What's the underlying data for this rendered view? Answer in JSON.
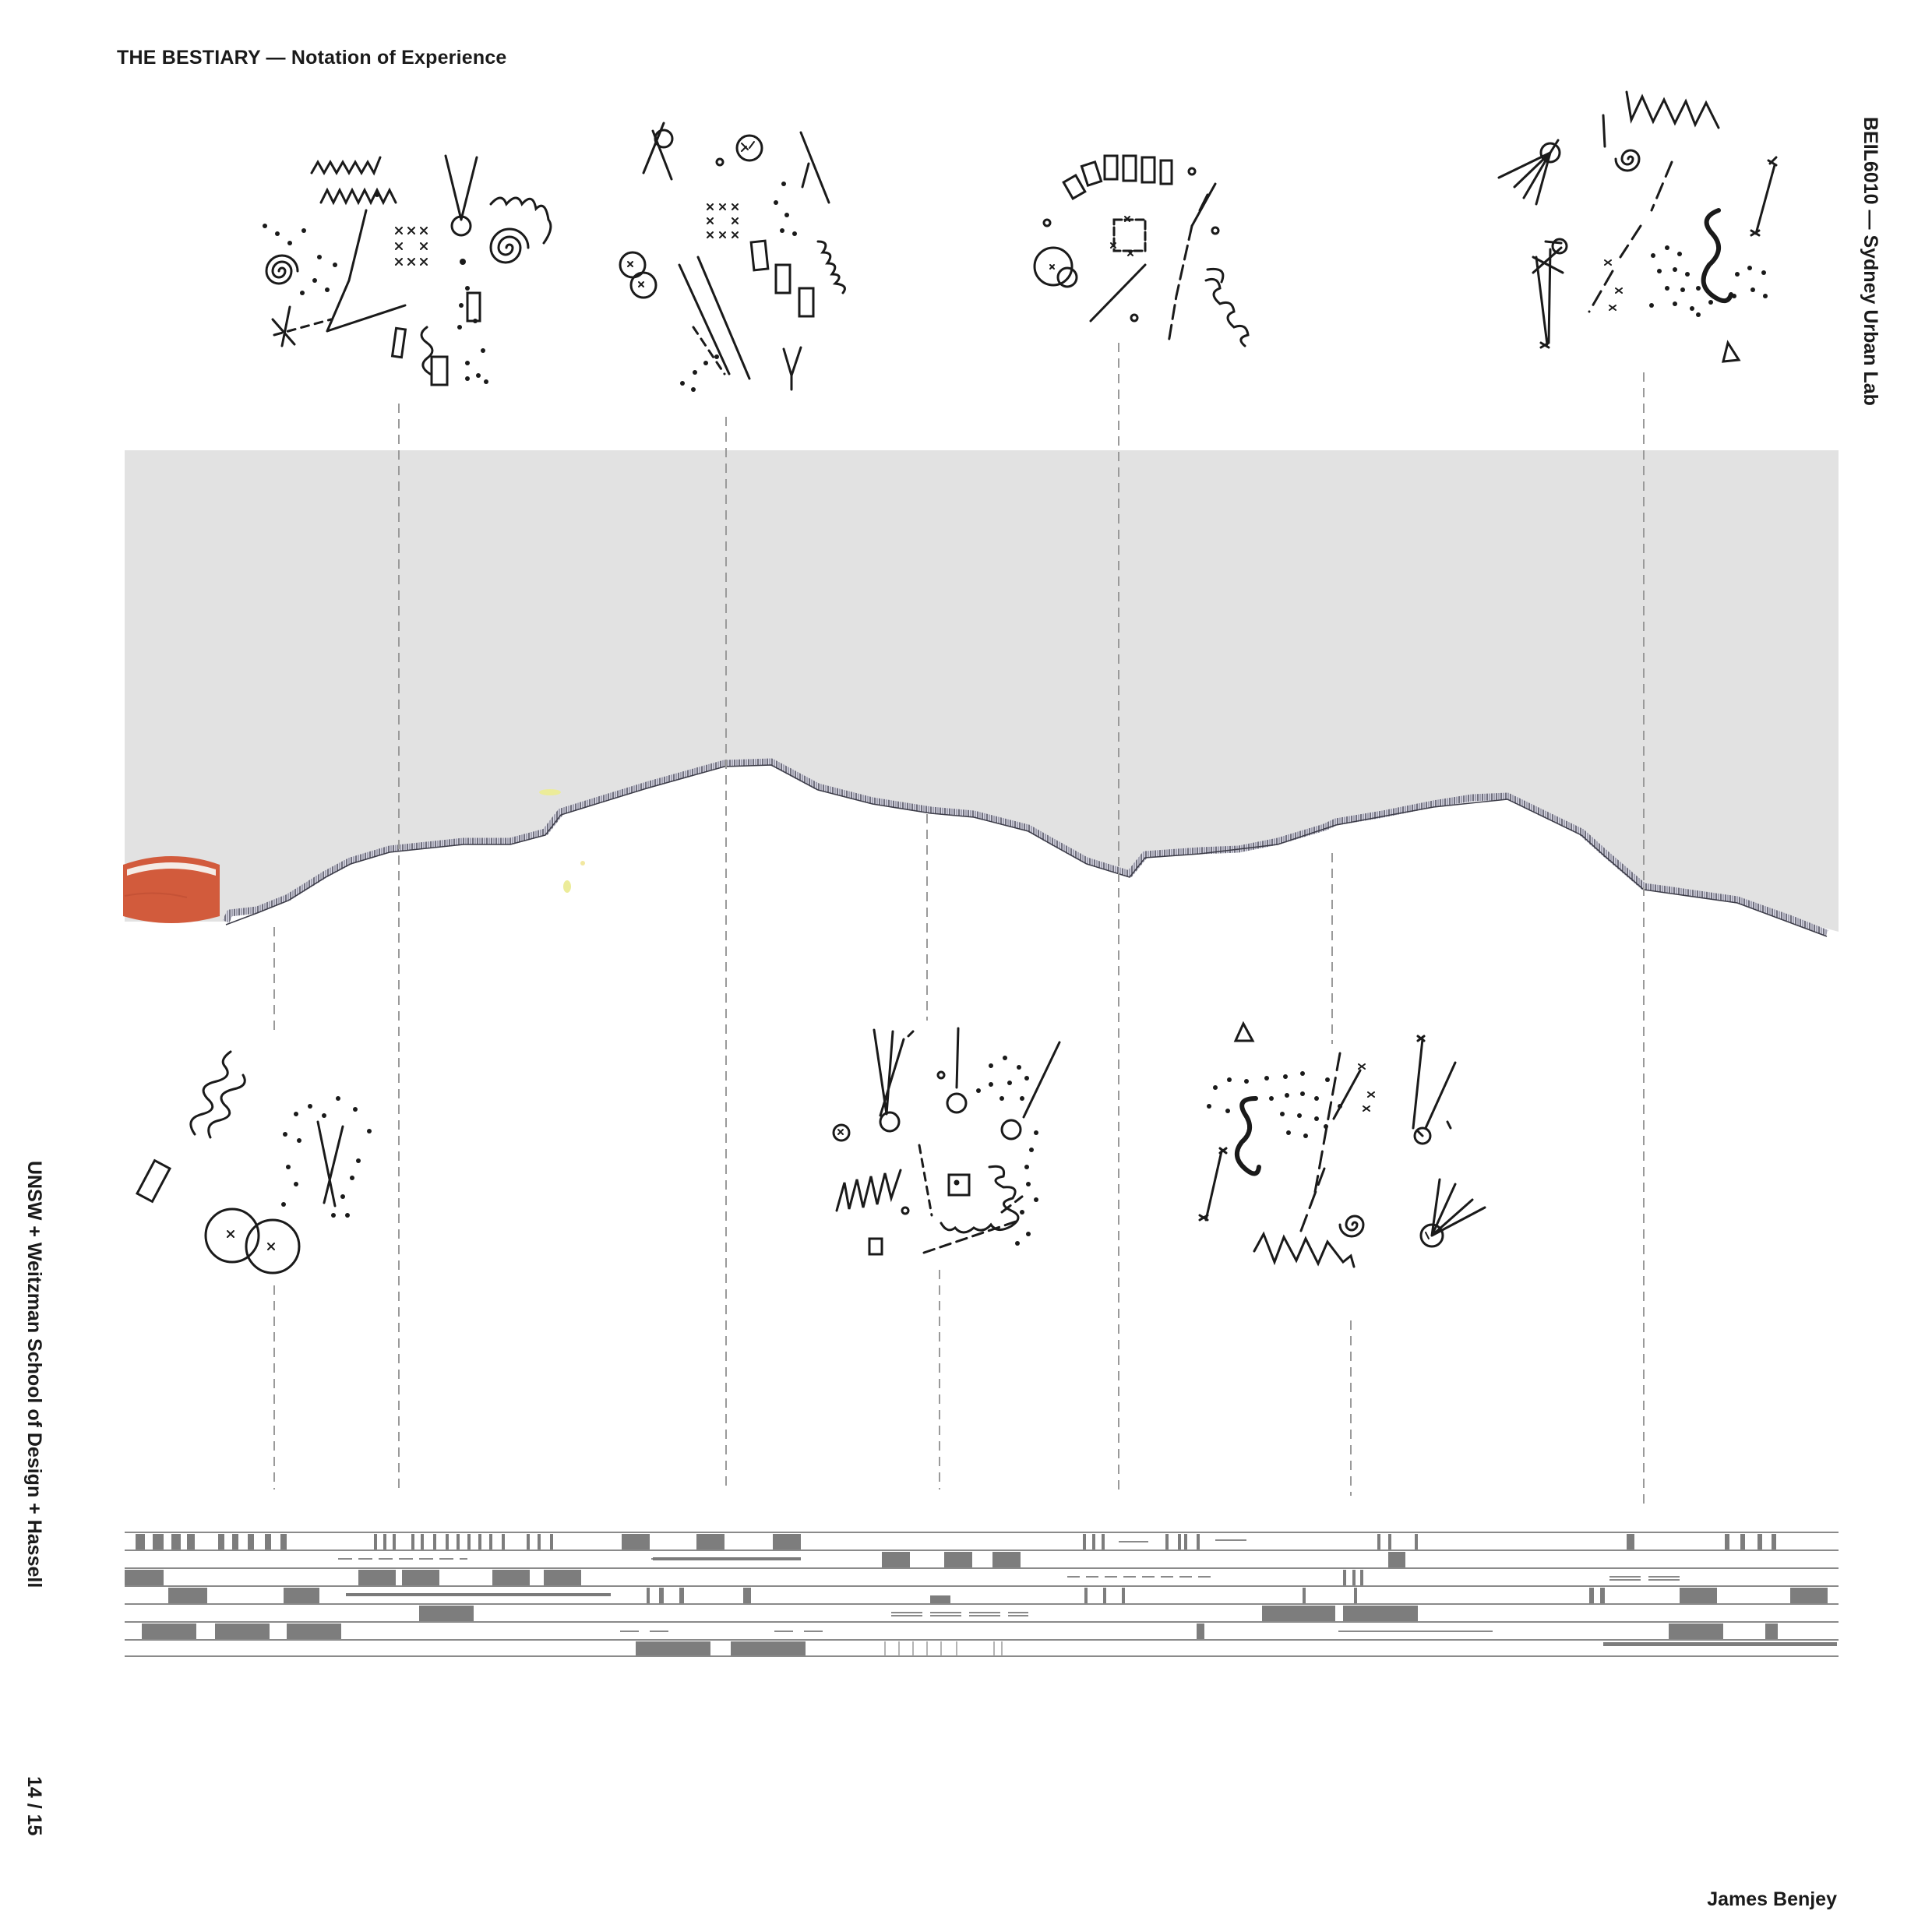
{
  "header": {
    "title": "THE BESTIARY — Notation of Experience",
    "course": "BEIL6010 — Sydney Urban Lab",
    "institution": "UNSW + Weitzman School of Design + Hassell",
    "page_number": "14 / 15",
    "author": "James Benjey"
  },
  "colors": {
    "sky": "#e2e2e2",
    "ink": "#1a1a1a",
    "marker": "#d25b3c",
    "notation_block": "#7d7d7d",
    "rule": "#9a9a9a"
  },
  "icons": [
    "spiral-glyph",
    "zigzag-glyph",
    "circle-glyph",
    "coil-glyph",
    "cross-glyph",
    "triangle-glyph",
    "dot-cluster-glyph",
    "rectangle-glyph"
  ],
  "notation": {
    "staff_lines": 7,
    "glyph_clusters": 8
  }
}
